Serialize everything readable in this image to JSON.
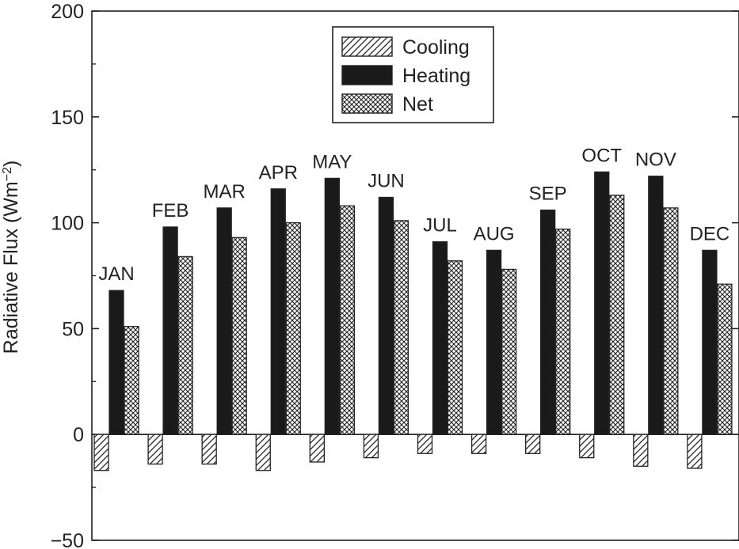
{
  "chart_data": {
    "type": "bar",
    "categories": [
      "JAN",
      "FEB",
      "MAR",
      "APR",
      "MAY",
      "JUN",
      "JUL",
      "AUG",
      "SEP",
      "OCT",
      "NOV",
      "DEC"
    ],
    "series": [
      {
        "name": "Cooling",
        "pattern": "diagonal-hatch",
        "values": [
          -17,
          -14,
          -14,
          -17,
          -13,
          -11,
          -9,
          -9,
          -9,
          -11,
          -15,
          -16
        ]
      },
      {
        "name": "Heating",
        "pattern": "solid",
        "color": "#1a1a1a",
        "values": [
          68,
          98,
          107,
          116,
          121,
          112,
          91,
          87,
          106,
          124,
          122,
          87
        ]
      },
      {
        "name": "Net",
        "pattern": "crosshatch",
        "values": [
          51,
          84,
          93,
          100,
          108,
          101,
          82,
          78,
          97,
          113,
          107,
          71
        ]
      }
    ],
    "ylabel_main": "Radiative Flux (Wm",
    "ylabel_sup": "−2",
    "ylabel_end": ")",
    "xlabel": "",
    "ylim": [
      -50,
      200
    ],
    "yticks": [
      -50,
      0,
      50,
      100,
      150,
      200
    ],
    "ytick_labels": [
      "−50",
      "0",
      "50",
      "100",
      "150",
      "200"
    ],
    "legend_position": "top-center",
    "grid": false
  }
}
